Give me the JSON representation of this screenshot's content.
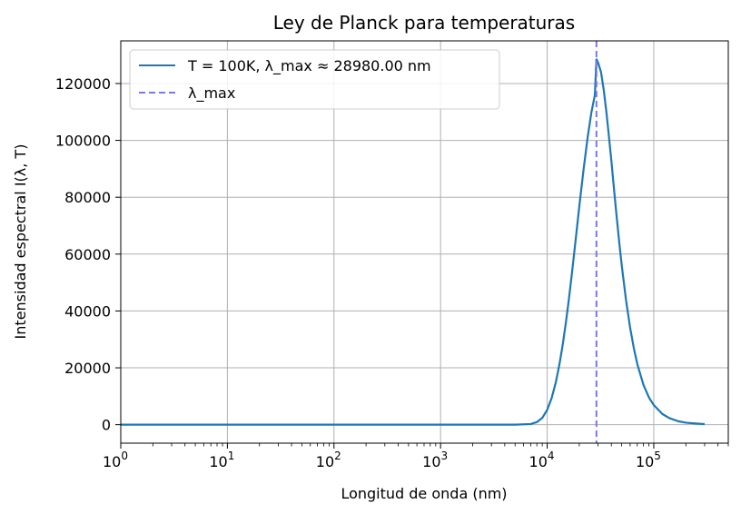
{
  "chart_data": {
    "type": "line",
    "title": "Ley de Planck para temperaturas",
    "xlabel": "Longitud de onda (nm)",
    "ylabel": "Intensidad espectral I(λ, T)",
    "xscale": "log",
    "xlim": [
      1,
      500000
    ],
    "ylim": [
      -6500,
      135000
    ],
    "grid": true,
    "legend_position": "top-left",
    "x_ticks": [
      {
        "value": 1,
        "base": "10",
        "exp": "0"
      },
      {
        "value": 10,
        "base": "10",
        "exp": "1"
      },
      {
        "value": 100,
        "base": "10",
        "exp": "2"
      },
      {
        "value": 1000,
        "base": "10",
        "exp": "3"
      },
      {
        "value": 10000,
        "base": "10",
        "exp": "4"
      },
      {
        "value": 100000,
        "base": "10",
        "exp": "5"
      }
    ],
    "y_ticks": [
      {
        "value": 0,
        "label": "0"
      },
      {
        "value": 20000,
        "label": "20000"
      },
      {
        "value": 40000,
        "label": "40000"
      },
      {
        "value": 60000,
        "label": "60000"
      },
      {
        "value": 80000,
        "label": "80000"
      },
      {
        "value": 100000,
        "label": "100000"
      },
      {
        "value": 120000,
        "label": "120000"
      }
    ],
    "series": [
      {
        "name": "T = 100K, λ_max ≈ 28980.00 nm",
        "color": "#1f77b4",
        "x": [
          1,
          100,
          1000,
          5000,
          7000,
          8000,
          9000,
          10000,
          11000,
          12000,
          13000,
          14000,
          15000,
          16000,
          17000,
          18000,
          19000,
          20000,
          22000,
          24000,
          26000,
          28000,
          28980,
          30000,
          32000,
          34000,
          36000,
          38000,
          40000,
          42500,
          45000,
          47500,
          50000,
          55000,
          60000,
          65000,
          70000,
          80000,
          90000,
          100000,
          120000,
          140000,
          170000,
          200000,
          250000,
          300000
        ],
        "y": [
          0,
          0,
          0,
          0,
          230,
          900,
          2400,
          5200,
          9300,
          14600,
          21000,
          28200,
          36100,
          44300,
          52700,
          61000,
          69000,
          76700,
          90100,
          101200,
          109900,
          115900,
          128500,
          127400,
          124000,
          117500,
          109700,
          101200,
          92900,
          82300,
          72600,
          63900,
          56200,
          43600,
          34100,
          26900,
          21400,
          14000,
          9600,
          6900,
          3800,
          2300,
          1200,
          700,
          400,
          200
        ]
      },
      {
        "name": "λ_max",
        "color": "#7b78e8",
        "dash": true,
        "x_value": 28980
      }
    ]
  }
}
